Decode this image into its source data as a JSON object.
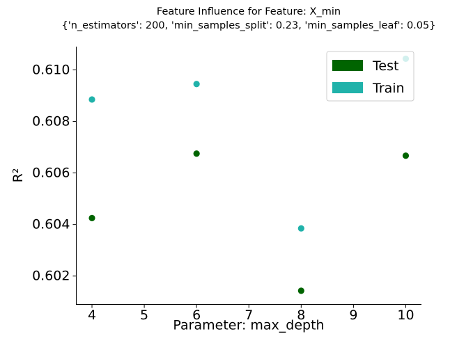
{
  "chart_data": {
    "type": "scatter",
    "title": "Feature Influence for Feature: X_min",
    "subtitle": "{'n_estimators': 200, 'min_samples_split': 0.23, 'min_samples_leaf': 0.05}",
    "xlabel": "Parameter: max_depth",
    "ylabel": "R²",
    "xlim": [
      3.7,
      10.3
    ],
    "ylim": [
      0.6009,
      0.6109
    ],
    "x_ticks": [
      4,
      5,
      6,
      7,
      8,
      9,
      10
    ],
    "x_tick_labels": [
      "4",
      "5",
      "6",
      "7",
      "8",
      "9",
      "10"
    ],
    "y_ticks": [
      0.602,
      0.604,
      0.606,
      0.608,
      0.61
    ],
    "y_tick_labels": [
      "0.602",
      "0.604",
      "0.606",
      "0.608",
      "0.610"
    ],
    "grid": false,
    "legend_position": "top-right",
    "series": [
      {
        "name": "Test",
        "color": "#006400",
        "x": [
          4,
          6,
          8,
          10
        ],
        "y": [
          0.60425,
          0.60675,
          0.60143,
          0.60667
        ]
      },
      {
        "name": "Train",
        "color": "#20b2aa",
        "x": [
          4,
          6,
          8,
          10
        ],
        "y": [
          0.60885,
          0.60945,
          0.60385,
          0.61043
        ]
      }
    ]
  }
}
